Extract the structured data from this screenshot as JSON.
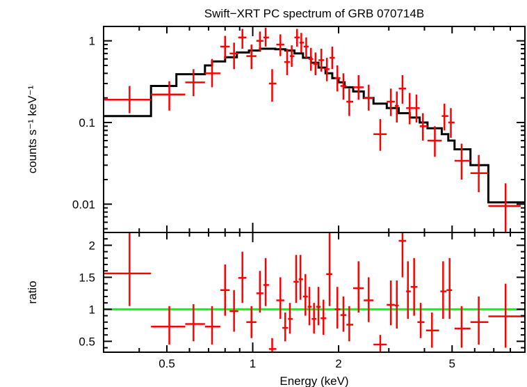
{
  "chart_data": [
    {
      "type": "scatter",
      "title": "Swift−XRT PC spectrum of GRB 070714B",
      "xlabel": "",
      "ylabel": "counts s⁻¹ keV⁻¹",
      "x_scale": "log",
      "y_scale": "log",
      "xlim": [
        0.3,
        9.0
      ],
      "ylim": [
        0.0045,
        1.5
      ],
      "yticks": [
        0.01,
        0.1,
        1
      ],
      "ytick_labels": [
        "0.01",
        "0.1",
        "1"
      ],
      "grid": false,
      "colors": {
        "data": "#ff0000",
        "model": "#000000"
      },
      "series": [
        {
          "kind": "data",
          "points": [
            {
              "x": 0.37,
              "xlo": 0.3,
              "xhi": 0.44,
              "y": 0.19,
              "ylo": 0.13,
              "yhi": 0.28
            },
            {
              "x": 0.51,
              "xlo": 0.44,
              "xhi": 0.58,
              "y": 0.22,
              "ylo": 0.14,
              "yhi": 0.32
            },
            {
              "x": 0.62,
              "xlo": 0.58,
              "xhi": 0.68,
              "y": 0.31,
              "ylo": 0.21,
              "yhi": 0.45
            },
            {
              "x": 0.72,
              "xlo": 0.68,
              "xhi": 0.77,
              "y": 0.4,
              "ylo": 0.27,
              "yhi": 0.6
            },
            {
              "x": 0.8,
              "xlo": 0.77,
              "xhi": 0.83,
              "y": 0.85,
              "ylo": 0.6,
              "yhi": 1.15
            },
            {
              "x": 0.86,
              "xlo": 0.83,
              "xhi": 0.89,
              "y": 0.7,
              "ylo": 0.45,
              "yhi": 0.95
            },
            {
              "x": 0.92,
              "xlo": 0.89,
              "xhi": 0.95,
              "y": 1.1,
              "ylo": 0.8,
              "yhi": 1.4
            },
            {
              "x": 0.99,
              "xlo": 0.95,
              "xhi": 1.03,
              "y": 0.65,
              "ylo": 0.45,
              "yhi": 0.9
            },
            {
              "x": 1.06,
              "xlo": 1.03,
              "xhi": 1.09,
              "y": 1.0,
              "ylo": 0.75,
              "yhi": 1.3
            },
            {
              "x": 1.11,
              "xlo": 1.09,
              "xhi": 1.14,
              "y": 1.1,
              "ylo": 0.85,
              "yhi": 1.45
            },
            {
              "x": 1.17,
              "xlo": 1.14,
              "xhi": 1.21,
              "y": 0.3,
              "ylo": 0.18,
              "yhi": 0.45
            },
            {
              "x": 1.25,
              "xlo": 1.21,
              "xhi": 1.29,
              "y": 0.9,
              "ylo": 0.65,
              "yhi": 1.2
            },
            {
              "x": 1.32,
              "xlo": 1.29,
              "xhi": 1.35,
              "y": 0.55,
              "ylo": 0.38,
              "yhi": 0.8
            },
            {
              "x": 1.37,
              "xlo": 1.35,
              "xhi": 1.4,
              "y": 0.65,
              "ylo": 0.48,
              "yhi": 0.88
            },
            {
              "x": 1.43,
              "xlo": 1.4,
              "xhi": 1.46,
              "y": 1.1,
              "ylo": 0.85,
              "yhi": 1.4
            },
            {
              "x": 1.48,
              "xlo": 1.46,
              "xhi": 1.51,
              "y": 0.95,
              "ylo": 0.72,
              "yhi": 1.25
            },
            {
              "x": 1.54,
              "xlo": 1.51,
              "xhi": 1.57,
              "y": 0.85,
              "ylo": 0.62,
              "yhi": 1.1
            },
            {
              "x": 1.6,
              "xlo": 1.57,
              "xhi": 1.63,
              "y": 0.6,
              "ylo": 0.43,
              "yhi": 0.82
            },
            {
              "x": 1.66,
              "xlo": 1.63,
              "xhi": 1.7,
              "y": 0.52,
              "ylo": 0.38,
              "yhi": 0.72
            },
            {
              "x": 1.74,
              "xlo": 1.7,
              "xhi": 1.78,
              "y": 0.58,
              "ylo": 0.42,
              "yhi": 0.8
            },
            {
              "x": 1.82,
              "xlo": 1.78,
              "xhi": 1.86,
              "y": 0.45,
              "ylo": 0.32,
              "yhi": 0.62
            },
            {
              "x": 1.9,
              "xlo": 1.86,
              "xhi": 1.94,
              "y": 0.62,
              "ylo": 0.45,
              "yhi": 0.85
            },
            {
              "x": 1.98,
              "xlo": 1.94,
              "xhi": 2.03,
              "y": 0.35,
              "ylo": 0.24,
              "yhi": 0.5
            },
            {
              "x": 2.08,
              "xlo": 2.03,
              "xhi": 2.13,
              "y": 0.28,
              "ylo": 0.19,
              "yhi": 0.4
            },
            {
              "x": 2.18,
              "xlo": 2.13,
              "xhi": 2.25,
              "y": 0.18,
              "ylo": 0.12,
              "yhi": 0.26
            },
            {
              "x": 2.35,
              "xlo": 2.25,
              "xhi": 2.45,
              "y": 0.27,
              "ylo": 0.19,
              "yhi": 0.38
            },
            {
              "x": 2.55,
              "xlo": 2.45,
              "xhi": 2.65,
              "y": 0.2,
              "ylo": 0.14,
              "yhi": 0.29
            },
            {
              "x": 2.8,
              "xlo": 2.65,
              "xhi": 2.95,
              "y": 0.072,
              "ylo": 0.045,
              "yhi": 0.11
            },
            {
              "x": 3.05,
              "xlo": 2.95,
              "xhi": 3.15,
              "y": 0.18,
              "ylo": 0.12,
              "yhi": 0.26
            },
            {
              "x": 3.2,
              "xlo": 3.15,
              "xhi": 3.25,
              "y": 0.16,
              "ylo": 0.1,
              "yhi": 0.24
            },
            {
              "x": 3.35,
              "xlo": 3.25,
              "xhi": 3.45,
              "y": 0.26,
              "ylo": 0.17,
              "yhi": 0.38
            },
            {
              "x": 3.55,
              "xlo": 3.45,
              "xhi": 3.65,
              "y": 0.15,
              "ylo": 0.095,
              "yhi": 0.23
            },
            {
              "x": 3.75,
              "xlo": 3.65,
              "xhi": 3.85,
              "y": 0.15,
              "ylo": 0.1,
              "yhi": 0.22
            },
            {
              "x": 3.95,
              "xlo": 3.85,
              "xhi": 4.1,
              "y": 0.09,
              "ylo": 0.06,
              "yhi": 0.13
            },
            {
              "x": 4.35,
              "xlo": 4.1,
              "xhi": 4.6,
              "y": 0.06,
              "ylo": 0.038,
              "yhi": 0.09
            },
            {
              "x": 4.7,
              "xlo": 4.6,
              "xhi": 4.85,
              "y": 0.12,
              "ylo": 0.08,
              "yhi": 0.17
            },
            {
              "x": 4.95,
              "xlo": 4.85,
              "xhi": 5.1,
              "y": 0.1,
              "ylo": 0.065,
              "yhi": 0.15
            },
            {
              "x": 5.4,
              "xlo": 5.1,
              "xhi": 5.8,
              "y": 0.034,
              "ylo": 0.02,
              "yhi": 0.055
            },
            {
              "x": 6.2,
              "xlo": 5.8,
              "xhi": 6.7,
              "y": 0.024,
              "ylo": 0.014,
              "yhi": 0.04
            },
            {
              "x": 7.7,
              "xlo": 6.7,
              "xhi": 8.7,
              "y": 0.0095,
              "ylo": 0.0045,
              "yhi": 0.018
            }
          ]
        },
        {
          "kind": "model",
          "steps": [
            {
              "x0": 0.3,
              "x1": 0.44,
              "y": 0.12
            },
            {
              "x0": 0.44,
              "x1": 0.54,
              "y": 0.28
            },
            {
              "x0": 0.54,
              "x1": 0.68,
              "y": 0.39
            },
            {
              "x0": 0.68,
              "x1": 0.72,
              "y": 0.5
            },
            {
              "x0": 0.72,
              "x1": 0.8,
              "y": 0.56
            },
            {
              "x0": 0.8,
              "x1": 0.88,
              "y": 0.63
            },
            {
              "x0": 0.88,
              "x1": 0.97,
              "y": 0.72
            },
            {
              "x0": 0.97,
              "x1": 1.06,
              "y": 0.76
            },
            {
              "x0": 1.06,
              "x1": 1.2,
              "y": 0.8
            },
            {
              "x0": 1.2,
              "x1": 1.3,
              "y": 0.79
            },
            {
              "x0": 1.3,
              "x1": 1.4,
              "y": 0.76
            },
            {
              "x0": 1.4,
              "x1": 1.5,
              "y": 0.7
            },
            {
              "x0": 1.5,
              "x1": 1.6,
              "y": 0.62
            },
            {
              "x0": 1.6,
              "x1": 1.7,
              "y": 0.54
            },
            {
              "x0": 1.7,
              "x1": 1.8,
              "y": 0.47
            },
            {
              "x0": 1.8,
              "x1": 1.9,
              "y": 0.4
            },
            {
              "x0": 1.9,
              "x1": 2.0,
              "y": 0.35
            },
            {
              "x0": 2.0,
              "x1": 2.1,
              "y": 0.31
            },
            {
              "x0": 2.1,
              "x1": 2.25,
              "y": 0.27
            },
            {
              "x0": 2.25,
              "x1": 2.45,
              "y": 0.24
            },
            {
              "x0": 2.45,
              "x1": 2.65,
              "y": 0.2
            },
            {
              "x0": 2.65,
              "x1": 2.95,
              "y": 0.17
            },
            {
              "x0": 2.95,
              "x1": 3.25,
              "y": 0.15
            },
            {
              "x0": 3.25,
              "x1": 3.55,
              "y": 0.13
            },
            {
              "x0": 3.55,
              "x1": 3.85,
              "y": 0.115
            },
            {
              "x0": 3.85,
              "x1": 4.1,
              "y": 0.1
            },
            {
              "x0": 4.1,
              "x1": 4.6,
              "y": 0.085
            },
            {
              "x0": 4.6,
              "x1": 4.85,
              "y": 0.072
            },
            {
              "x0": 4.85,
              "x1": 5.1,
              "y": 0.06
            },
            {
              "x0": 5.1,
              "x1": 5.8,
              "y": 0.047
            },
            {
              "x0": 5.8,
              "x1": 6.7,
              "y": 0.03
            },
            {
              "x0": 6.7,
              "x1": 9.0,
              "y": 0.0105
            }
          ]
        }
      ]
    },
    {
      "type": "scatter",
      "title": "",
      "xlabel": "Energy (keV)",
      "ylabel": "ratio",
      "x_scale": "log",
      "xlim": [
        0.3,
        9.0
      ],
      "ylim": [
        0.33,
        2.2
      ],
      "xticks": [
        0.5,
        1,
        2,
        5
      ],
      "xtick_labels": [
        "0.5",
        "1",
        "2",
        "5"
      ],
      "yticks": [
        0.5,
        1,
        1.5,
        2
      ],
      "ytick_labels": [
        "0.5",
        "1",
        "1.5",
        "2"
      ],
      "grid": false,
      "reference_line": 1,
      "colors": {
        "data": "#ff0000",
        "reference": "#00ff00"
      },
      "series": [
        {
          "kind": "ratio",
          "points": [
            {
              "x": 0.37,
              "xlo": 0.3,
              "xhi": 0.44,
              "y": 1.56,
              "ylo": 1.05,
              "yhi": 2.2
            },
            {
              "x": 0.51,
              "xlo": 0.44,
              "xhi": 0.58,
              "y": 0.73,
              "ylo": 0.45,
              "yhi": 1.05
            },
            {
              "x": 0.62,
              "xlo": 0.58,
              "xhi": 0.68,
              "y": 0.77,
              "ylo": 0.5,
              "yhi": 1.08
            },
            {
              "x": 0.72,
              "xlo": 0.68,
              "xhi": 0.77,
              "y": 0.73,
              "ylo": 0.45,
              "yhi": 1.05
            },
            {
              "x": 0.8,
              "xlo": 0.77,
              "xhi": 0.83,
              "y": 1.3,
              "ylo": 0.9,
              "yhi": 1.7
            },
            {
              "x": 0.86,
              "xlo": 0.83,
              "xhi": 0.89,
              "y": 0.97,
              "ylo": 0.65,
              "yhi": 1.3
            },
            {
              "x": 0.92,
              "xlo": 0.89,
              "xhi": 0.95,
              "y": 1.49,
              "ylo": 1.1,
              "yhi": 1.9
            },
            {
              "x": 0.99,
              "xlo": 0.95,
              "xhi": 1.03,
              "y": 0.8,
              "ylo": 0.55,
              "yhi": 1.05
            },
            {
              "x": 1.06,
              "xlo": 1.03,
              "xhi": 1.09,
              "y": 1.25,
              "ylo": 0.95,
              "yhi": 1.6
            },
            {
              "x": 1.11,
              "xlo": 1.09,
              "xhi": 1.14,
              "y": 1.38,
              "ylo": 1.05,
              "yhi": 1.8
            },
            {
              "x": 1.17,
              "xlo": 1.14,
              "xhi": 1.21,
              "y": 0.38,
              "ylo": 0.33,
              "yhi": 0.55
            },
            {
              "x": 1.25,
              "xlo": 1.21,
              "xhi": 1.29,
              "y": 1.14,
              "ylo": 0.85,
              "yhi": 1.5
            },
            {
              "x": 1.3,
              "xlo": 1.27,
              "xhi": 1.33,
              "y": 0.71,
              "ylo": 0.5,
              "yhi": 0.95
            },
            {
              "x": 1.35,
              "xlo": 1.33,
              "xhi": 1.38,
              "y": 0.85,
              "ylo": 0.62,
              "yhi": 1.1
            },
            {
              "x": 1.42,
              "xlo": 1.39,
              "xhi": 1.45,
              "y": 1.43,
              "ylo": 1.1,
              "yhi": 1.85
            },
            {
              "x": 1.47,
              "xlo": 1.45,
              "xhi": 1.5,
              "y": 1.47,
              "ylo": 1.15,
              "yhi": 1.85
            },
            {
              "x": 1.53,
              "xlo": 1.5,
              "xhi": 1.56,
              "y": 1.2,
              "ylo": 0.9,
              "yhi": 1.55
            },
            {
              "x": 1.58,
              "xlo": 1.56,
              "xhi": 1.61,
              "y": 1.04,
              "ylo": 0.75,
              "yhi": 1.35
            },
            {
              "x": 1.64,
              "xlo": 1.61,
              "xhi": 1.67,
              "y": 0.85,
              "ylo": 0.62,
              "yhi": 1.1
            },
            {
              "x": 1.7,
              "xlo": 1.67,
              "xhi": 1.73,
              "y": 1.04,
              "ylo": 0.75,
              "yhi": 1.35
            },
            {
              "x": 1.77,
              "xlo": 1.73,
              "xhi": 1.81,
              "y": 0.86,
              "ylo": 0.6,
              "yhi": 1.15
            },
            {
              "x": 1.86,
              "xlo": 1.81,
              "xhi": 1.9,
              "y": 1.55,
              "ylo": 1.05,
              "yhi": 2.2
            },
            {
              "x": 1.98,
              "xlo": 1.94,
              "xhi": 2.03,
              "y": 1.0,
              "ylo": 0.7,
              "yhi": 1.35
            },
            {
              "x": 2.08,
              "xlo": 2.03,
              "xhi": 2.13,
              "y": 0.91,
              "ylo": 0.65,
              "yhi": 1.2
            },
            {
              "x": 2.18,
              "xlo": 2.13,
              "xhi": 2.25,
              "y": 0.76,
              "ylo": 0.5,
              "yhi": 1.05
            },
            {
              "x": 2.35,
              "xlo": 2.25,
              "xhi": 2.45,
              "y": 1.33,
              "ylo": 0.95,
              "yhi": 1.75
            },
            {
              "x": 2.55,
              "xlo": 2.45,
              "xhi": 2.65,
              "y": 1.14,
              "ylo": 0.8,
              "yhi": 1.5
            },
            {
              "x": 2.8,
              "xlo": 2.65,
              "xhi": 2.95,
              "y": 0.45,
              "ylo": 0.33,
              "yhi": 0.6
            },
            {
              "x": 3.05,
              "xlo": 2.95,
              "xhi": 3.15,
              "y": 1.07,
              "ylo": 0.75,
              "yhi": 1.45
            },
            {
              "x": 3.2,
              "xlo": 3.15,
              "xhi": 3.25,
              "y": 1.06,
              "ylo": 0.7,
              "yhi": 1.45
            },
            {
              "x": 3.35,
              "xlo": 3.25,
              "xhi": 3.45,
              "y": 2.07,
              "ylo": 1.5,
              "yhi": 2.2
            },
            {
              "x": 3.5,
              "xlo": 3.45,
              "xhi": 3.58,
              "y": 1.28,
              "ylo": 0.85,
              "yhi": 1.75
            },
            {
              "x": 3.68,
              "xlo": 3.58,
              "xhi": 3.78,
              "y": 1.35,
              "ylo": 0.9,
              "yhi": 1.8
            },
            {
              "x": 3.88,
              "xlo": 3.78,
              "xhi": 4.0,
              "y": 0.8,
              "ylo": 0.55,
              "yhi": 1.1
            },
            {
              "x": 4.25,
              "xlo": 4.05,
              "xhi": 4.5,
              "y": 0.67,
              "ylo": 0.4,
              "yhi": 0.95
            },
            {
              "x": 4.65,
              "xlo": 4.55,
              "xhi": 4.78,
              "y": 1.28,
              "ylo": 0.85,
              "yhi": 1.75
            },
            {
              "x": 4.9,
              "xlo": 4.78,
              "xhi": 5.0,
              "y": 1.3,
              "ylo": 0.85,
              "yhi": 1.8
            },
            {
              "x": 5.4,
              "xlo": 5.1,
              "xhi": 5.8,
              "y": 0.7,
              "ylo": 0.4,
              "yhi": 1.05
            },
            {
              "x": 6.2,
              "xlo": 5.8,
              "xhi": 6.7,
              "y": 0.8,
              "ylo": 0.45,
              "yhi": 1.2
            },
            {
              "x": 7.7,
              "xlo": 6.7,
              "xhi": 9.0,
              "y": 0.89,
              "ylo": 0.4,
              "yhi": 1.4
            }
          ]
        }
      ]
    }
  ]
}
